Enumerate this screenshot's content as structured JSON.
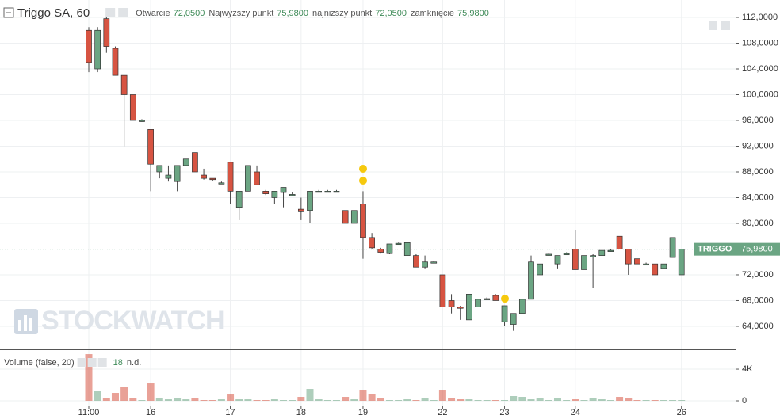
{
  "chart_data": {
    "type": "candlestick",
    "title": "Triggo SA, 60",
    "ohlc_legend": [
      {
        "name": "Otwarcie",
        "value": {
          "value": 72.05,
          "label": "72,0500"
        }
      },
      {
        "name": "Najwyzszy punkt",
        "value": {
          "value": 75.98,
          "label": "75,9800"
        }
      },
      {
        "name": "najnizszy punkt",
        "value": {
          "value": 72.05,
          "label": "72,0500"
        }
      },
      {
        "name": "zamknięcie",
        "value": {
          "value": 75.98,
          "label": "75,9800"
        }
      }
    ],
    "watermark": "STOCKWATCH",
    "categories": [
      "11:00",
      null,
      null,
      null,
      null,
      null,
      null,
      "16",
      null,
      null,
      null,
      null,
      null,
      null,
      null,
      null,
      "17",
      null,
      null,
      null,
      null,
      null,
      null,
      null,
      "18",
      null,
      null,
      null,
      null,
      null,
      null,
      "19",
      null,
      null,
      null,
      null,
      null,
      null,
      null,
      null,
      "22",
      null,
      null,
      null,
      null,
      null,
      null,
      "23",
      null,
      null,
      null,
      null,
      null,
      null,
      null,
      "24",
      null,
      null,
      null,
      null,
      null,
      null,
      null,
      null,
      null,
      null,
      null,
      "26"
    ],
    "open": [
      110,
      104,
      111.8,
      107.2,
      103,
      100,
      96,
      94.6,
      88,
      87,
      86.5,
      89,
      91,
      87.5,
      87,
      86.3,
      89.5,
      82.5,
      85,
      88,
      85,
      84,
      84.8,
      84.5,
      82.2,
      82,
      85,
      85,
      85,
      82,
      80,
      83,
      77.8,
      76,
      75.3,
      76.9,
      75,
      75,
      73.2,
      74,
      72,
      68,
      67,
      65,
      67,
      68.3,
      68.8,
      64.7,
      64.3,
      66,
      68.2,
      72,
      75.2,
      73.7,
      75.3,
      76,
      72.8,
      75,
      75,
      75.8,
      78,
      76,
      74.5,
      73.7,
      73.7,
      73,
      74.7,
      72
    ],
    "high": [
      110.5,
      110.5,
      112.2,
      107.5,
      103,
      100,
      96.2,
      94.6,
      89,
      89,
      89,
      90,
      91,
      88.5,
      87,
      86.5,
      89.5,
      85,
      89,
      89,
      85.2,
      85,
      85.6,
      84.8,
      84,
      85,
      85.2,
      85.2,
      85.2,
      82,
      82,
      85,
      78.5,
      76.2,
      76.8,
      77,
      77,
      75.2,
      75,
      74.2,
      72,
      69,
      67.2,
      69,
      68.2,
      68.5,
      69,
      67.2,
      66,
      68.2,
      75,
      73.7,
      75.4,
      75,
      75.5,
      79,
      75,
      75.2,
      75.8,
      76,
      78,
      76,
      74.5,
      73.9,
      73.7,
      73.7,
      77.8,
      75.98
    ],
    "low": [
      103.5,
      103.5,
      106.5,
      103,
      92,
      96,
      95.8,
      85,
      87,
      86.5,
      85,
      89,
      88,
      86.8,
      86.6,
      86.1,
      83,
      80.5,
      85,
      86,
      84.4,
      83,
      82.5,
      84.3,
      80.5,
      80,
      84.8,
      84.8,
      84.8,
      80,
      80,
      74.5,
      76,
      75.3,
      75.2,
      76.7,
      75,
      73.2,
      73,
      73.8,
      67,
      66,
      65,
      65,
      67,
      68.1,
      68,
      64,
      63.3,
      66,
      68.2,
      72,
      75,
      73,
      75.1,
      72.8,
      72.8,
      70,
      75,
      75.6,
      76,
      72,
      73.7,
      73.5,
      72,
      73,
      74.7,
      72
    ],
    "close": [
      105,
      110,
      107.5,
      103,
      100,
      96,
      96,
      89.2,
      89,
      87.5,
      89,
      90,
      88,
      87,
      86.8,
      86.3,
      85,
      85,
      89,
      86,
      84.6,
      85,
      85.6,
      84.5,
      81.8,
      85,
      85,
      85,
      85,
      80,
      82,
      77.8,
      76.2,
      75.5,
      76.8,
      76.9,
      77,
      73.2,
      74,
      74,
      67,
      67,
      66.8,
      69,
      68.2,
      68.3,
      68,
      67.2,
      66,
      68.2,
      74,
      73.7,
      75.2,
      75,
      75.3,
      72.8,
      75,
      75,
      75.8,
      75.8,
      76,
      73.7,
      73.7,
      73.7,
      72,
      73.7,
      77.8,
      75.98
    ],
    "up_color": "#6ba583",
    "down_color": "#d75442",
    "ylim": [
      60.55,
      114.71
    ],
    "yticks": [
      {
        "value": 64,
        "label": "64,0000"
      },
      {
        "value": 68,
        "label": "68,0000"
      },
      {
        "value": 72,
        "label": "72,0000"
      },
      {
        "value": 76,
        "label": "76,0000"
      },
      {
        "value": 80,
        "label": "80,0000"
      },
      {
        "value": 84,
        "label": "84,0000"
      },
      {
        "value": 88,
        "label": "88,0000"
      },
      {
        "value": 92,
        "label": "92,0000"
      },
      {
        "value": 96,
        "label": "96,0000"
      },
      {
        "value": 100,
        "label": "100,0000"
      },
      {
        "value": 104,
        "label": "104,0000"
      },
      {
        "value": 108,
        "label": "108,0000"
      },
      {
        "value": 112,
        "label": "112,0000"
      }
    ],
    "grid": true,
    "last_price": {
      "name": "TRIGGO",
      "value": {
        "value": 75.98,
        "label": "75,9800"
      },
      "color": "#6ba583"
    },
    "volume": {
      "name": "Volume (false, 20)",
      "last": 18,
      "ma": "n.d.",
      "values": [
        5900,
        1200,
        400,
        1000,
        1800,
        400,
        100,
        2200,
        400,
        200,
        300,
        200,
        300,
        100,
        100,
        200,
        800,
        200,
        200,
        100,
        100,
        200,
        100,
        100,
        500,
        1500,
        200,
        100,
        100,
        500,
        200,
        1400,
        900,
        300,
        100,
        100,
        200,
        100,
        300,
        100,
        1300,
        300,
        200,
        200,
        100,
        100,
        100,
        100,
        600,
        500,
        200,
        300,
        100,
        300,
        100,
        200,
        100,
        400,
        200,
        100,
        500,
        300,
        100,
        100,
        100,
        100,
        100,
        100
      ],
      "ylim": [
        0,
        6300
      ],
      "yticks": [
        0,
        {
          "value": 4000,
          "label": "4K"
        }
      ]
    }
  }
}
